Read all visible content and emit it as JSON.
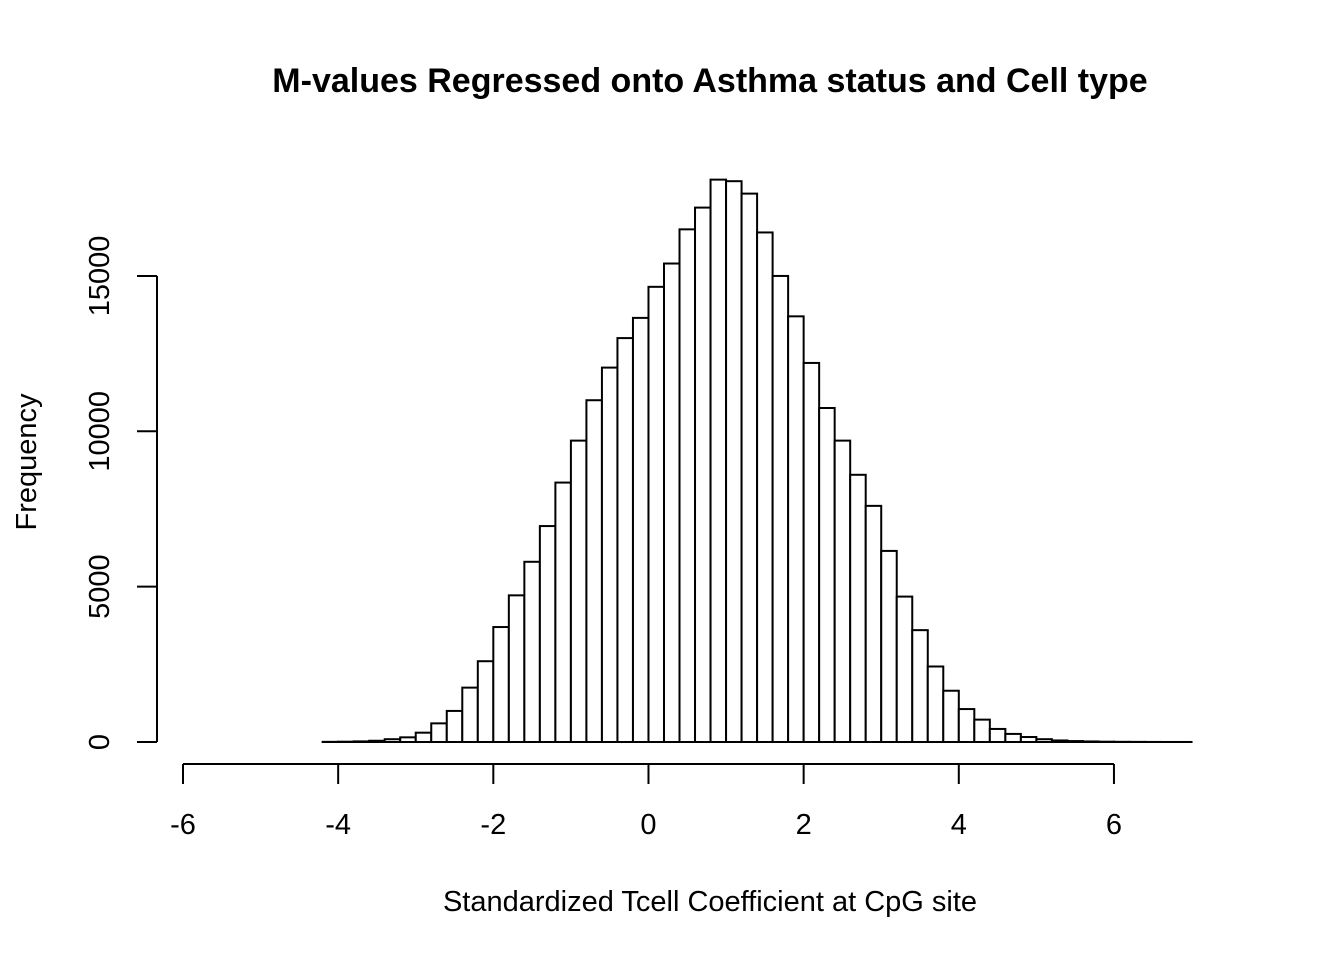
{
  "chart_data": {
    "type": "bar",
    "title": "M-values Regressed onto Asthma status and Cell type",
    "xlabel": "Standardized Tcell Coefficient at CpG site",
    "ylabel": "Frequency",
    "xlim": [
      -6,
      6
    ],
    "ylim": [
      0,
      15000
    ],
    "x_ticks": [
      -6,
      -4,
      -2,
      0,
      2,
      4,
      6
    ],
    "y_ticks": [
      0,
      5000,
      10000,
      15000
    ],
    "bin_width": 0.2,
    "bin_start": -5.8,
    "values": [
      0,
      0,
      0,
      0,
      0,
      0,
      0,
      0,
      5,
      10,
      20,
      40,
      90,
      150,
      300,
      600,
      1000,
      1750,
      2600,
      3700,
      4720,
      5800,
      6950,
      8350,
      9700,
      11000,
      12050,
      13000,
      13650,
      14650,
      15400,
      16500,
      17200,
      18100,
      18050,
      17650,
      16400,
      15000,
      13700,
      12200,
      10750,
      9700,
      8600,
      7600,
      6150,
      4680,
      3600,
      2430,
      1650,
      1060,
      720,
      420,
      260,
      160,
      90,
      50,
      30,
      18,
      10,
      6,
      4,
      2,
      1,
      1,
      0,
      0,
      0
    ]
  }
}
